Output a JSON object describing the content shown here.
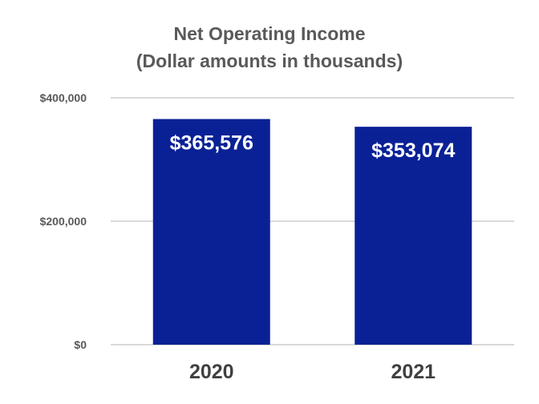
{
  "chart_data": {
    "type": "bar",
    "title": "Net Operating Income",
    "subtitle": "(Dollar amounts in thousands)",
    "categories": [
      "2020",
      "2021"
    ],
    "values": [
      365576,
      353074
    ],
    "data_labels": [
      "$365,576",
      "$353,074"
    ],
    "ylim": [
      0,
      400000
    ],
    "yticks": [
      0,
      200000,
      400000
    ],
    "ytick_labels": [
      "$0",
      "$200,000",
      "$400,000"
    ],
    "grid": true,
    "legend": "none",
    "bar_color": "#0a2196",
    "grid_color": "#d9d9d9"
  }
}
